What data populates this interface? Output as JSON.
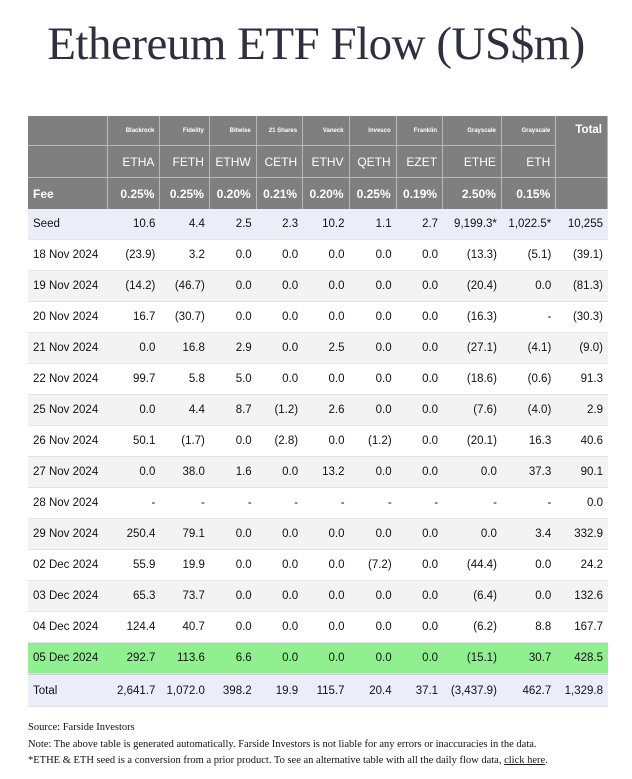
{
  "title": "Ethereum ETF Flow (US$m)",
  "chart_data": {
    "type": "table",
    "columns": [
      {
        "issuer": "Blackrock",
        "ticker": "ETHA",
        "fee": "0.25%"
      },
      {
        "issuer": "Fidelity",
        "ticker": "FETH",
        "fee": "0.25%"
      },
      {
        "issuer": "Bitwise",
        "ticker": "ETHW",
        "fee": "0.20%"
      },
      {
        "issuer": "21 Shares",
        "ticker": "CETH",
        "fee": "0.21%"
      },
      {
        "issuer": "Vaneck",
        "ticker": "ETHV",
        "fee": "0.20%"
      },
      {
        "issuer": "Invesco",
        "ticker": "QETH",
        "fee": "0.25%"
      },
      {
        "issuer": "Franklin",
        "ticker": "EZET",
        "fee": "0.19%"
      },
      {
        "issuer": "Grayscale",
        "ticker": "ETHE",
        "fee": "2.50%"
      },
      {
        "issuer": "Grayscale",
        "ticker": "ETH",
        "fee": "0.15%"
      }
    ],
    "total_label": "Total",
    "fee_label": "Fee",
    "rows": [
      {
        "date": "Seed",
        "values": [
          "10.6",
          "4.4",
          "2.5",
          "2.3",
          "10.2",
          "1.1",
          "2.7",
          "9,199.3*",
          "1,022.5*"
        ],
        "total": "10,255"
      },
      {
        "date": "18 Nov 2024",
        "values": [
          "(23.9)",
          "3.2",
          "0.0",
          "0.0",
          "0.0",
          "0.0",
          "0.0",
          "(13.3)",
          "(5.1)"
        ],
        "total": "(39.1)"
      },
      {
        "date": "19 Nov 2024",
        "values": [
          "(14.2)",
          "(46.7)",
          "0.0",
          "0.0",
          "0.0",
          "0.0",
          "0.0",
          "(20.4)",
          "0.0"
        ],
        "total": "(81.3)"
      },
      {
        "date": "20 Nov 2024",
        "values": [
          "16.7",
          "(30.7)",
          "0.0",
          "0.0",
          "0.0",
          "0.0",
          "0.0",
          "(16.3)",
          "-"
        ],
        "total": "(30.3)"
      },
      {
        "date": "21 Nov 2024",
        "values": [
          "0.0",
          "16.8",
          "2.9",
          "0.0",
          "2.5",
          "0.0",
          "0.0",
          "(27.1)",
          "(4.1)"
        ],
        "total": "(9.0)"
      },
      {
        "date": "22 Nov 2024",
        "values": [
          "99.7",
          "5.8",
          "5.0",
          "0.0",
          "0.0",
          "0.0",
          "0.0",
          "(18.6)",
          "(0.6)"
        ],
        "total": "91.3"
      },
      {
        "date": "25 Nov 2024",
        "values": [
          "0.0",
          "4.4",
          "8.7",
          "(1.2)",
          "2.6",
          "0.0",
          "0.0",
          "(7.6)",
          "(4.0)"
        ],
        "total": "2.9"
      },
      {
        "date": "26 Nov 2024",
        "values": [
          "50.1",
          "(1.7)",
          "0.0",
          "(2.8)",
          "0.0",
          "(1.2)",
          "0.0",
          "(20.1)",
          "16.3"
        ],
        "total": "40.6"
      },
      {
        "date": "27 Nov 2024",
        "values": [
          "0.0",
          "38.0",
          "1.6",
          "0.0",
          "13.2",
          "0.0",
          "0.0",
          "0.0",
          "37.3"
        ],
        "total": "90.1"
      },
      {
        "date": "28 Nov 2024",
        "values": [
          "-",
          "-",
          "-",
          "-",
          "-",
          "-",
          "-",
          "-",
          "-"
        ],
        "total": "0.0"
      },
      {
        "date": "29 Nov 2024",
        "values": [
          "250.4",
          "79.1",
          "0.0",
          "0.0",
          "0.0",
          "0.0",
          "0.0",
          "0.0",
          "3.4"
        ],
        "total": "332.9"
      },
      {
        "date": "02 Dec 2024",
        "values": [
          "55.9",
          "19.9",
          "0.0",
          "0.0",
          "0.0",
          "(7.2)",
          "0.0",
          "(44.4)",
          "0.0"
        ],
        "total": "24.2"
      },
      {
        "date": "03 Dec 2024",
        "values": [
          "65.3",
          "73.7",
          "0.0",
          "0.0",
          "0.0",
          "0.0",
          "0.0",
          "(6.4)",
          "0.0"
        ],
        "total": "132.6"
      },
      {
        "date": "04 Dec 2024",
        "values": [
          "124.4",
          "40.7",
          "0.0",
          "0.0",
          "0.0",
          "0.0",
          "0.0",
          "(6.2)",
          "8.8"
        ],
        "total": "167.7"
      },
      {
        "date": "05 Dec 2024",
        "values": [
          "292.7",
          "113.6",
          "6.6",
          "0.0",
          "0.0",
          "0.0",
          "0.0",
          "(15.1)",
          "30.7"
        ],
        "total": "428.5",
        "highlight": true
      },
      {
        "date": "Total",
        "values": [
          "2,641.7",
          "1,072.0",
          "398.2",
          "19.9",
          "115.7",
          "20.4",
          "37.1",
          "(3,437.9)",
          "462.7"
        ],
        "total": "1,329.8"
      }
    ]
  },
  "notes": {
    "source": "Source: Farside Investors",
    "disclaimer": "Note: The above table is generated automatically. Farside Investors is not liable for any errors or inaccuracies in the data.",
    "seed_note": "*ETHE & ETH seed is a conversion from a prior product.  To see an alternative table with all the daily flow data, ",
    "link_text": "click here",
    "link_suffix": "."
  },
  "colors": {
    "header_bg": "#7f7f7f",
    "negative": "#d01010",
    "highlight_row": "#90f090",
    "seed_total_row": "#e9eef8"
  }
}
